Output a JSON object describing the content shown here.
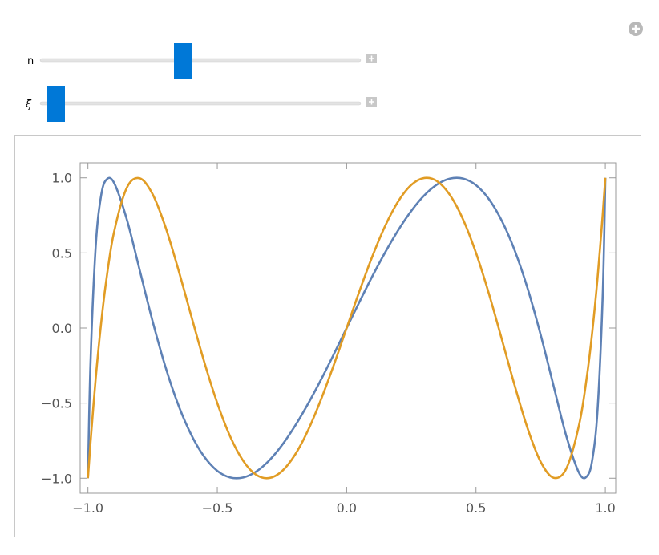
{
  "controls": [
    {
      "label": "n"
    },
    {
      "label": "ξ"
    }
  ],
  "chart_data": {
    "type": "line",
    "x": [
      -1,
      -0.99,
      -0.97,
      -0.95,
      -0.93,
      -0.9,
      -0.85,
      -0.8,
      -0.75,
      -0.7,
      -0.65,
      -0.6,
      -0.55,
      -0.5,
      -0.45,
      -0.4,
      -0.35,
      -0.3,
      -0.25,
      -0.2,
      -0.15,
      -0.1,
      -0.05,
      0,
      0.05,
      0.1,
      0.15,
      0.2,
      0.25,
      0.3,
      0.35,
      0.4,
      0.45,
      0.5,
      0.55,
      0.6,
      0.65,
      0.7,
      0.75,
      0.8,
      0.85,
      0.9,
      0.93,
      0.95,
      0.97,
      0.99,
      1
    ],
    "series": [
      {
        "color": "#5e81b5",
        "values": [
          -1,
          -0.227,
          0.543,
          0.872,
          0.985,
          0.97,
          0.725,
          0.386,
          0.045,
          -0.261,
          -0.515,
          -0.713,
          -0.858,
          -0.951,
          -0.995,
          -0.995,
          -0.956,
          -0.883,
          -0.78,
          -0.653,
          -0.507,
          -0.347,
          -0.176,
          0,
          0.176,
          0.347,
          0.507,
          0.653,
          0.78,
          0.883,
          0.956,
          0.995,
          0.995,
          0.951,
          0.858,
          0.713,
          0.515,
          0.261,
          -0.045,
          -0.386,
          -0.725,
          -0.97,
          -0.985,
          -0.872,
          -0.543,
          0.227,
          1
        ]
      },
      {
        "color": "#e19c24",
        "values": [
          -1,
          -0.76,
          -0.336,
          0.017,
          0.306,
          0.632,
          0.933,
          0.997,
          0.891,
          0.671,
          0.386,
          0.076,
          -0.228,
          -0.5,
          -0.723,
          -0.884,
          -0.977,
          -0.999,
          -0.953,
          -0.845,
          -0.684,
          -0.48,
          -0.248,
          0,
          0.248,
          0.48,
          0.684,
          0.845,
          0.953,
          0.999,
          0.977,
          0.884,
          0.723,
          0.5,
          0.228,
          -0.076,
          -0.386,
          -0.671,
          -0.891,
          -0.997,
          -0.933,
          -0.632,
          -0.306,
          -0.017,
          0.336,
          0.76,
          1
        ]
      }
    ],
    "xlim": [
      -1.03,
      1.04
    ],
    "ylim": [
      -1.1,
      1.1
    ],
    "xticks": [
      {
        "value": -1,
        "label": "−1.0"
      },
      {
        "value": -0.5,
        "label": "−0.5"
      },
      {
        "value": 0,
        "label": "0.0"
      },
      0.5,
      {
        "value": 1,
        "label": "1.0"
      }
    ],
    "yticks": [
      {
        "value": -1,
        "label": "−1.0"
      },
      {
        "value": -0.5,
        "label": "−0.5"
      },
      {
        "value": 0,
        "label": "0.0"
      },
      0.5,
      {
        "value": 1,
        "label": "1.0"
      }
    ],
    "frame": true
  }
}
